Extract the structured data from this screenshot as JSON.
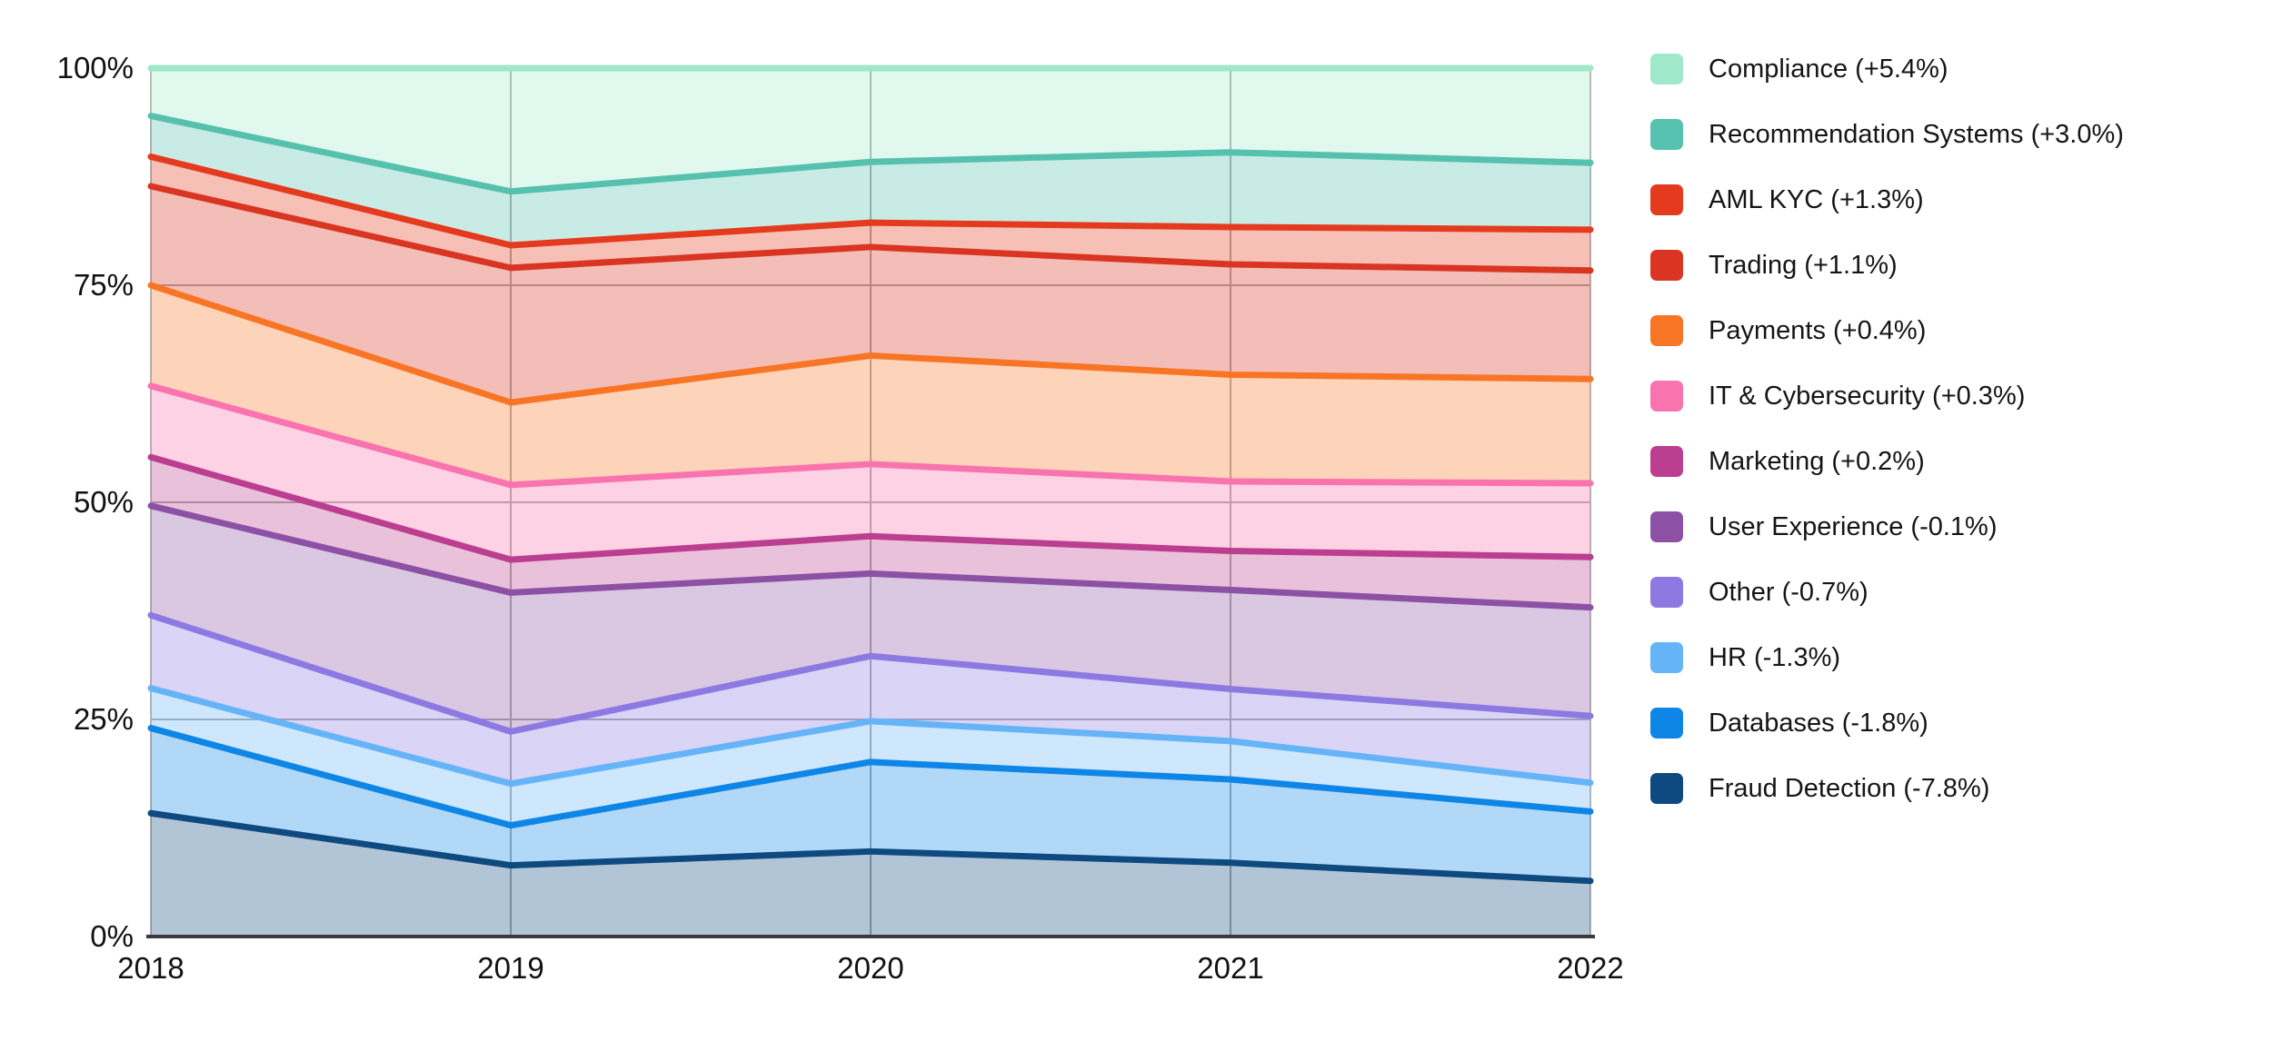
{
  "chart_data": {
    "type": "area",
    "stacking": "percent",
    "title": "",
    "xlabel": "",
    "ylabel": "",
    "x": [
      2018,
      2019,
      2020,
      2021,
      2022
    ],
    "ylim": [
      0,
      100
    ],
    "grid": true,
    "legend_position": "right",
    "series": [
      {
        "name": "Fraud Detection",
        "color": "#0E4A80",
        "values": [
          14.2,
          8.2,
          9.8,
          8.5,
          6.4
        ]
      },
      {
        "name": "Databases",
        "color": "#0E86E7",
        "values": [
          9.8,
          4.6,
          10.3,
          9.6,
          8.0
        ]
      },
      {
        "name": "HR",
        "color": "#66B4F8",
        "values": [
          4.6,
          4.8,
          4.7,
          4.4,
          3.3
        ]
      },
      {
        "name": "Other",
        "color": "#8C7AE2",
        "values": [
          8.4,
          6.0,
          7.5,
          6.0,
          7.7
        ]
      },
      {
        "name": "User Experience",
        "color": "#8C51A5",
        "values": [
          12.6,
          16.0,
          9.5,
          11.4,
          12.5
        ]
      },
      {
        "name": "Marketing",
        "color": "#BC3E90",
        "values": [
          5.6,
          3.8,
          4.3,
          4.5,
          5.8
        ]
      },
      {
        "name": "IT & Cybersecurity",
        "color": "#F973AE",
        "values": [
          8.2,
          8.6,
          8.3,
          8.0,
          8.5
        ]
      },
      {
        "name": "Payments",
        "color": "#F97526",
        "values": [
          11.6,
          9.5,
          12.5,
          12.3,
          12.0
        ]
      },
      {
        "name": "Trading",
        "color": "#D93522",
        "values": [
          11.4,
          15.5,
          12.5,
          12.7,
          12.5
        ]
      },
      {
        "name": "AML KYC",
        "color": "#E43A1D",
        "values": [
          3.4,
          2.6,
          2.8,
          4.3,
          4.7
        ]
      },
      {
        "name": "Recommendation Systems",
        "color": "#55C1AE",
        "values": [
          4.7,
          6.2,
          7.0,
          8.6,
          7.7
        ]
      },
      {
        "name": "Compliance",
        "color": "#9FE8C9",
        "values": [
          5.5,
          14.2,
          10.8,
          9.7,
          10.9
        ]
      }
    ]
  },
  "axes": {
    "y_labels": [
      "100%",
      "75%",
      "50%",
      "25%",
      "0%"
    ],
    "x_labels": [
      "2018",
      "2019",
      "2020",
      "2021",
      "2022"
    ]
  },
  "legend": {
    "items": [
      {
        "label": "Compliance (+5.4%)",
        "color": "#9FE8C9"
      },
      {
        "label": "Recommendation Systems (+3.0%)",
        "color": "#55C1AE"
      },
      {
        "label": "AML KYC (+1.3%)",
        "color": "#E43A1D"
      },
      {
        "label": "Trading (+1.1%)",
        "color": "#D93522"
      },
      {
        "label": "Payments (+0.4%)",
        "color": "#F97526"
      },
      {
        "label": "IT & Cybersecurity (+0.3%)",
        "color": "#F973AE"
      },
      {
        "label": "Marketing (+0.2%)",
        "color": "#BC3E90"
      },
      {
        "label": "User Experience (-0.1%)",
        "color": "#8C51A5"
      },
      {
        "label": "Other (-0.7%)",
        "color": "#8C7AE2"
      },
      {
        "label": "HR (-1.3%)",
        "color": "#66B4F8"
      },
      {
        "label": "Databases (-1.8%)",
        "color": "#0E86E7"
      },
      {
        "label": "Fraud Detection (-7.8%)",
        "color": "#0E4A80"
      }
    ]
  },
  "style": {
    "grid_color": "#ABABAB",
    "spine_color": "#B5B5B5",
    "axis_line_color": "#3A3A3C",
    "fill_opacity": 0.32
  }
}
